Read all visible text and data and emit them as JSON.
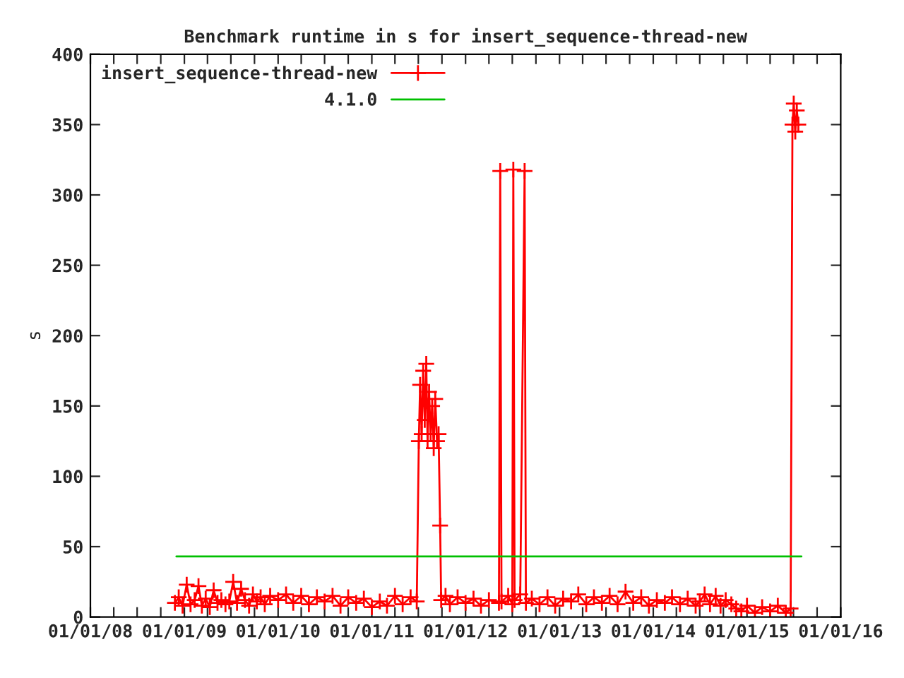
{
  "chart_data": {
    "type": "line",
    "title": "Benchmark runtime in s for insert_sequence-thread-new",
    "ylabel": "s",
    "xlim": [
      "2008-01-01",
      "2016-01-01"
    ],
    "xticks": [
      {
        "value": "2008-01-01",
        "label": "01/01/08"
      },
      {
        "value": "2008-04-01",
        "label": null
      },
      {
        "value": "2008-07-01",
        "label": null
      },
      {
        "value": "2008-10-01",
        "label": null
      },
      {
        "value": "2009-01-01",
        "label": "01/01/09"
      },
      {
        "value": "2009-04-01",
        "label": null
      },
      {
        "value": "2009-07-01",
        "label": null
      },
      {
        "value": "2009-10-01",
        "label": null
      },
      {
        "value": "2010-01-01",
        "label": "01/01/10"
      },
      {
        "value": "2010-04-01",
        "label": null
      },
      {
        "value": "2010-07-01",
        "label": null
      },
      {
        "value": "2010-10-01",
        "label": null
      },
      {
        "value": "2011-01-01",
        "label": "01/01/11"
      },
      {
        "value": "2011-04-01",
        "label": null
      },
      {
        "value": "2011-07-01",
        "label": null
      },
      {
        "value": "2011-10-01",
        "label": null
      },
      {
        "value": "2012-01-01",
        "label": "01/01/12"
      },
      {
        "value": "2012-04-01",
        "label": null
      },
      {
        "value": "2012-07-01",
        "label": null
      },
      {
        "value": "2012-10-01",
        "label": null
      },
      {
        "value": "2013-01-01",
        "label": "01/01/13"
      },
      {
        "value": "2013-04-01",
        "label": null
      },
      {
        "value": "2013-07-01",
        "label": null
      },
      {
        "value": "2013-10-01",
        "label": null
      },
      {
        "value": "2014-01-01",
        "label": "01/01/14"
      },
      {
        "value": "2014-04-01",
        "label": null
      },
      {
        "value": "2014-07-01",
        "label": null
      },
      {
        "value": "2014-10-01",
        "label": null
      },
      {
        "value": "2015-01-01",
        "label": "01/01/15"
      },
      {
        "value": "2015-04-01",
        "label": null
      },
      {
        "value": "2015-07-01",
        "label": null
      },
      {
        "value": "2015-10-01",
        "label": null
      },
      {
        "value": "2016-01-01",
        "label": "01/01/16"
      }
    ],
    "ylim": [
      0,
      400
    ],
    "yticks": [
      0,
      50,
      100,
      150,
      200,
      250,
      300,
      350,
      400
    ],
    "grid": false,
    "legend": "top left",
    "series": [
      {
        "name": "insert_sequence-thread-new",
        "color": "#ff0000",
        "marker": "cross",
        "line_style": "solid",
        "x": [
          "2008-11-25",
          "2008-12-10",
          "2008-12-25",
          "2009-01-10",
          "2009-01-25",
          "2009-02-10",
          "2009-02-25",
          "2009-03-10",
          "2009-03-25",
          "2009-04-10",
          "2009-04-25",
          "2009-05-10",
          "2009-05-25",
          "2009-06-10",
          "2009-06-25",
          "2009-07-10",
          "2009-07-25",
          "2009-08-10",
          "2009-08-25",
          "2009-09-10",
          "2009-09-25",
          "2009-10-10",
          "2009-10-25",
          "2009-11-10",
          "2009-12-01",
          "2010-01-01",
          "2010-02-01",
          "2010-03-01",
          "2010-04-01",
          "2010-05-01",
          "2010-06-01",
          "2010-07-01",
          "2010-08-01",
          "2010-09-01",
          "2010-10-01",
          "2010-11-01",
          "2010-12-01",
          "2011-01-01",
          "2011-02-01",
          "2011-03-01",
          "2011-04-01",
          "2011-05-01",
          "2011-06-01",
          "2011-06-25",
          "2011-07-03",
          "2011-07-08",
          "2011-07-14",
          "2011-07-20",
          "2011-07-26",
          "2011-08-01",
          "2011-08-06",
          "2011-08-12",
          "2011-08-18",
          "2011-08-24",
          "2011-08-30",
          "2011-09-05",
          "2011-09-12",
          "2011-09-18",
          "2011-09-24",
          "2011-09-28",
          "2011-10-15",
          "2011-11-01",
          "2011-12-01",
          "2012-01-01",
          "2012-02-01",
          "2012-03-01",
          "2012-04-01",
          "2012-05-10",
          "2012-05-15",
          "2012-05-20",
          "2012-06-15",
          "2012-07-01",
          "2012-07-05",
          "2012-07-10",
          "2012-08-01",
          "2012-08-18",
          "2012-08-23",
          "2012-09-15",
          "2012-10-15",
          "2012-11-15",
          "2012-12-15",
          "2013-01-15",
          "2013-02-15",
          "2013-03-15",
          "2013-04-15",
          "2013-05-15",
          "2013-06-15",
          "2013-07-15",
          "2013-08-15",
          "2013-09-15",
          "2013-10-15",
          "2013-11-15",
          "2013-12-15",
          "2014-01-15",
          "2014-02-15",
          "2014-03-15",
          "2014-04-15",
          "2014-05-15",
          "2014-06-15",
          "2014-07-01",
          "2014-07-20",
          "2014-08-10",
          "2014-09-01",
          "2014-09-20",
          "2014-10-10",
          "2014-11-01",
          "2014-11-20",
          "2014-12-10",
          "2015-01-01",
          "2015-02-01",
          "2015-03-01",
          "2015-04-01",
          "2015-05-01",
          "2015-06-01",
          "2015-06-20",
          "2015-06-27",
          "2015-07-02",
          "2015-07-08",
          "2015-07-14",
          "2015-07-20"
        ],
        "values": [
          10,
          14,
          8,
          23,
          9,
          12,
          22,
          8,
          13,
          7,
          19,
          10,
          12,
          9,
          11,
          25,
          10,
          20,
          12,
          8,
          16,
          11,
          14,
          9,
          15,
          12,
          16,
          10,
          15,
          9,
          14,
          11,
          15,
          8,
          14,
          10,
          13,
          7,
          11,
          8,
          15,
          9,
          14,
          11,
          125,
          165,
          130,
          175,
          140,
          180,
          125,
          160,
          130,
          150,
          120,
          155,
          125,
          130,
          65,
          12,
          15,
          9,
          14,
          10,
          13,
          8,
          12,
          10,
          317,
          11,
          15,
          9,
          318,
          12,
          16,
          317,
          10,
          13,
          9,
          14,
          8,
          13,
          11,
          16,
          9,
          14,
          10,
          15,
          9,
          18,
          10,
          14,
          8,
          12,
          10,
          14,
          9,
          13,
          8,
          11,
          16,
          9,
          15,
          8,
          12,
          9,
          6,
          4,
          8,
          3,
          7,
          4,
          8,
          3,
          6,
          350,
          365,
          345,
          360,
          350
        ]
      },
      {
        "name": "4.1.0",
        "color": "#00c000",
        "marker": "none",
        "line_style": "solid",
        "x": [
          "2008-12-01",
          "2015-08-01"
        ],
        "values": [
          43,
          43
        ]
      }
    ]
  }
}
